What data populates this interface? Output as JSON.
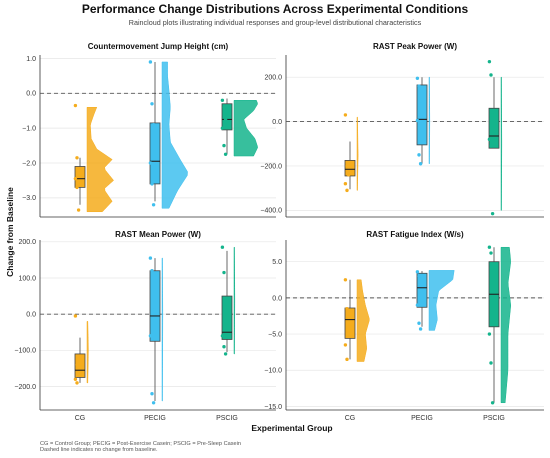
{
  "figure": {
    "title": "Performance Change Distributions Across Experimental Conditions",
    "subtitle": "Raincloud plots illustrating individual responses and group-level distributional characteristics",
    "ylabel": "Change from Baseline",
    "xlabel": "Experimental Group",
    "footnote_line1": "CG = Control Group; PECIG = Post-Exercise Casein; PSCIG = Pre-Sleep Casein",
    "footnote_line2": "Dashed line indicates no change from baseline."
  },
  "colors": {
    "CG": "#f5ac1c",
    "PECIG": "#3fbfee",
    "PSCIG": "#14b48c"
  },
  "chart_data": [
    {
      "type": "raincloud",
      "title": "Countermovement Jump Height (cm)",
      "categories": [
        "CG",
        "PECIG",
        "PSCIG"
      ],
      "ylim": [
        -3.55,
        1.1
      ],
      "yticks": [
        1.0,
        0.0,
        -1.0,
        -2.0,
        -3.0
      ],
      "ytick_labels": [
        "1.0",
        "0.0",
        "−1.0",
        "−2.0",
        "−3.0"
      ],
      "show_xticks": false,
      "boxes": [
        {
          "q1": -2.7,
          "median": -2.45,
          "q3": -2.1,
          "whisker_low": -3.2,
          "whisker_high": -1.85
        },
        {
          "q1": -2.6,
          "median": -1.95,
          "q3": -0.85,
          "whisker_low": -3.1,
          "whisker_high": 0.9
        },
        {
          "q1": -1.05,
          "median": -0.75,
          "q3": -0.3,
          "whisker_low": -1.75,
          "whisker_high": -0.15
        }
      ],
      "points": [
        [
          -0.35,
          -1.85,
          -2.2,
          -2.45,
          -2.7,
          -3.35
        ],
        [
          0.9,
          -0.3,
          -0.9,
          -2.0,
          -2.6,
          -3.2
        ],
        [
          -0.2,
          -0.4,
          -0.75,
          -1.0,
          -1.5,
          -1.75
        ]
      ],
      "clouds": [
        {
          "min": -3.4,
          "max": -0.4,
          "profile": [
            [
              -3.4,
              0.55
            ],
            [
              -3.1,
              0.9
            ],
            [
              -2.75,
              0.6
            ],
            [
              -2.5,
              0.95
            ],
            [
              -2.15,
              0.6
            ],
            [
              -1.9,
              0.9
            ],
            [
              -1.6,
              0.35
            ],
            [
              -1.3,
              0.15
            ],
            [
              -0.9,
              0.12
            ],
            [
              -0.6,
              0.25
            ],
            [
              -0.4,
              0.35
            ]
          ]
        },
        {
          "min": -3.3,
          "max": 0.9,
          "profile": [
            [
              -3.3,
              0.25
            ],
            [
              -2.8,
              0.55
            ],
            [
              -2.3,
              0.95
            ],
            [
              -1.9,
              0.65
            ],
            [
              -1.4,
              0.3
            ],
            [
              -0.9,
              0.25
            ],
            [
              -0.4,
              0.3
            ],
            [
              0.1,
              0.25
            ],
            [
              0.5,
              0.2
            ],
            [
              0.9,
              0.2
            ]
          ]
        },
        {
          "min": -1.8,
          "max": -0.2,
          "profile": [
            [
              -1.8,
              0.7
            ],
            [
              -1.55,
              0.85
            ],
            [
              -1.3,
              0.75
            ],
            [
              -1.0,
              0.45
            ],
            [
              -0.75,
              0.35
            ],
            [
              -0.5,
              0.7
            ],
            [
              -0.3,
              0.85
            ],
            [
              -0.2,
              0.8
            ]
          ]
        }
      ]
    },
    {
      "type": "raincloud",
      "title": "RAST Peak Power (W)",
      "categories": [
        "CG",
        "PECIG",
        "PSCIG"
      ],
      "ylim": [
        -430,
        300
      ],
      "yticks": [
        200,
        0,
        -200,
        -400
      ],
      "ytick_labels": [
        "200.0",
        "0.0",
        "−200.0",
        "−400.0"
      ],
      "show_xticks": false,
      "boxes": [
        {
          "q1": -245,
          "median": -215,
          "q3": -175,
          "whisker_low": -305,
          "whisker_high": -90
        },
        {
          "q1": -105,
          "median": 10,
          "q3": 165,
          "whisker_low": -190,
          "whisker_high": 200
        },
        {
          "q1": -120,
          "median": -65,
          "q3": 60,
          "whisker_low": -120,
          "whisker_high": 200
        }
      ],
      "points": [
        [
          30,
          -200,
          -240,
          -280,
          -310
        ],
        [
          195,
          160,
          80,
          5,
          -150,
          -190
        ],
        [
          270,
          210,
          30,
          -80,
          -110,
          -415
        ]
      ],
      "clouds": [
        {
          "min": -310,
          "max": 20,
          "profile": [
            [
              -310,
              0.02
            ],
            [
              -150,
              0.04
            ],
            [
              20,
              0.02
            ]
          ]
        },
        {
          "min": -190,
          "max": 200,
          "profile": [
            [
              -190,
              0.02
            ],
            [
              0,
              0.03
            ],
            [
              200,
              0.02
            ]
          ]
        },
        {
          "min": -400,
          "max": 200,
          "profile": [
            [
              -400,
              0.02
            ],
            [
              -100,
              0.03
            ],
            [
              200,
              0.02
            ]
          ]
        }
      ]
    },
    {
      "type": "raincloud",
      "title": "RAST Mean Power (W)",
      "categories": [
        "CG",
        "PECIG",
        "PSCIG"
      ],
      "ylim": [
        -265,
        205
      ],
      "yticks": [
        200,
        100,
        0,
        -100,
        -200
      ],
      "ytick_labels": [
        "200.0",
        "100.0",
        "0.0",
        "−100.0",
        "−200.0"
      ],
      "show_xticks": true,
      "boxes": [
        {
          "q1": -175,
          "median": -155,
          "q3": -110,
          "whisker_low": -190,
          "whisker_high": -65
        },
        {
          "q1": -75,
          "median": -5,
          "q3": 120,
          "whisker_low": -240,
          "whisker_high": 155
        },
        {
          "q1": -70,
          "median": -50,
          "q3": 50,
          "whisker_low": -105,
          "whisker_high": 175
        }
      ],
      "points": [
        [
          -5,
          -140,
          -165,
          -180,
          -190
        ],
        [
          155,
          120,
          10,
          -60,
          -220,
          -245
        ],
        [
          185,
          115,
          20,
          -60,
          -90,
          -110
        ]
      ],
      "clouds": [
        {
          "min": -190,
          "max": -20,
          "profile": [
            [
              -190,
              0.03
            ],
            [
              -100,
              0.05
            ],
            [
              -20,
              0.03
            ]
          ]
        },
        {
          "min": -240,
          "max": 155,
          "profile": [
            [
              -240,
              0.02
            ],
            [
              0,
              0.03
            ],
            [
              155,
              0.02
            ]
          ]
        },
        {
          "min": -110,
          "max": 185,
          "profile": [
            [
              -110,
              0.02
            ],
            [
              40,
              0.03
            ],
            [
              185,
              0.02
            ]
          ]
        }
      ]
    },
    {
      "type": "raincloud",
      "title": "RAST Fatigue Index (W/s)",
      "categories": [
        "CG",
        "PECIG",
        "PSCIG"
      ],
      "ylim": [
        -15.5,
        8
      ],
      "yticks": [
        5.0,
        0.0,
        -5.0,
        -10.0,
        -15.0
      ],
      "ytick_labels": [
        "5.0",
        "0.0",
        "−5.0",
        "−10.0",
        "−15.0"
      ],
      "show_xticks": true,
      "boxes": [
        {
          "q1": -5.6,
          "median": -3.0,
          "q3": -1.4,
          "whisker_low": -8.5,
          "whisker_high": 2.5
        },
        {
          "q1": -1.3,
          "median": 1.4,
          "q3": 3.4,
          "whisker_low": -4.0,
          "whisker_high": 3.7
        },
        {
          "q1": -4.0,
          "median": 0.5,
          "q3": 5.0,
          "whisker_low": -14.5,
          "whisker_high": 7.0
        }
      ],
      "points": [
        [
          2.5,
          -1.5,
          -4.0,
          -6.5,
          -8.5
        ],
        [
          3.6,
          3.0,
          1.0,
          -1.0,
          -3.5,
          -4.3
        ],
        [
          7.0,
          6.2,
          0.0,
          -5.0,
          -9.0,
          -14.5
        ]
      ],
      "clouds": [
        {
          "min": -8.8,
          "max": 2.5,
          "profile": [
            [
              -8.8,
              0.25
            ],
            [
              -7,
              0.35
            ],
            [
              -5,
              0.3
            ],
            [
              -3,
              0.45
            ],
            [
              -1,
              0.3
            ],
            [
              1,
              0.2
            ],
            [
              2.5,
              0.15
            ]
          ]
        },
        {
          "min": -4.5,
          "max": 3.8,
          "profile": [
            [
              -4.5,
              0.2
            ],
            [
              -3,
              0.3
            ],
            [
              -1,
              0.25
            ],
            [
              1,
              0.35
            ],
            [
              2.5,
              0.85
            ],
            [
              3.8,
              0.9
            ]
          ]
        },
        {
          "min": -14.5,
          "max": 7.0,
          "profile": [
            [
              -14.5,
              0.15
            ],
            [
              -10,
              0.25
            ],
            [
              -5,
              0.25
            ],
            [
              -1,
              0.35
            ],
            [
              2,
              0.25
            ],
            [
              5,
              0.35
            ],
            [
              7,
              0.3
            ]
          ]
        }
      ]
    }
  ]
}
